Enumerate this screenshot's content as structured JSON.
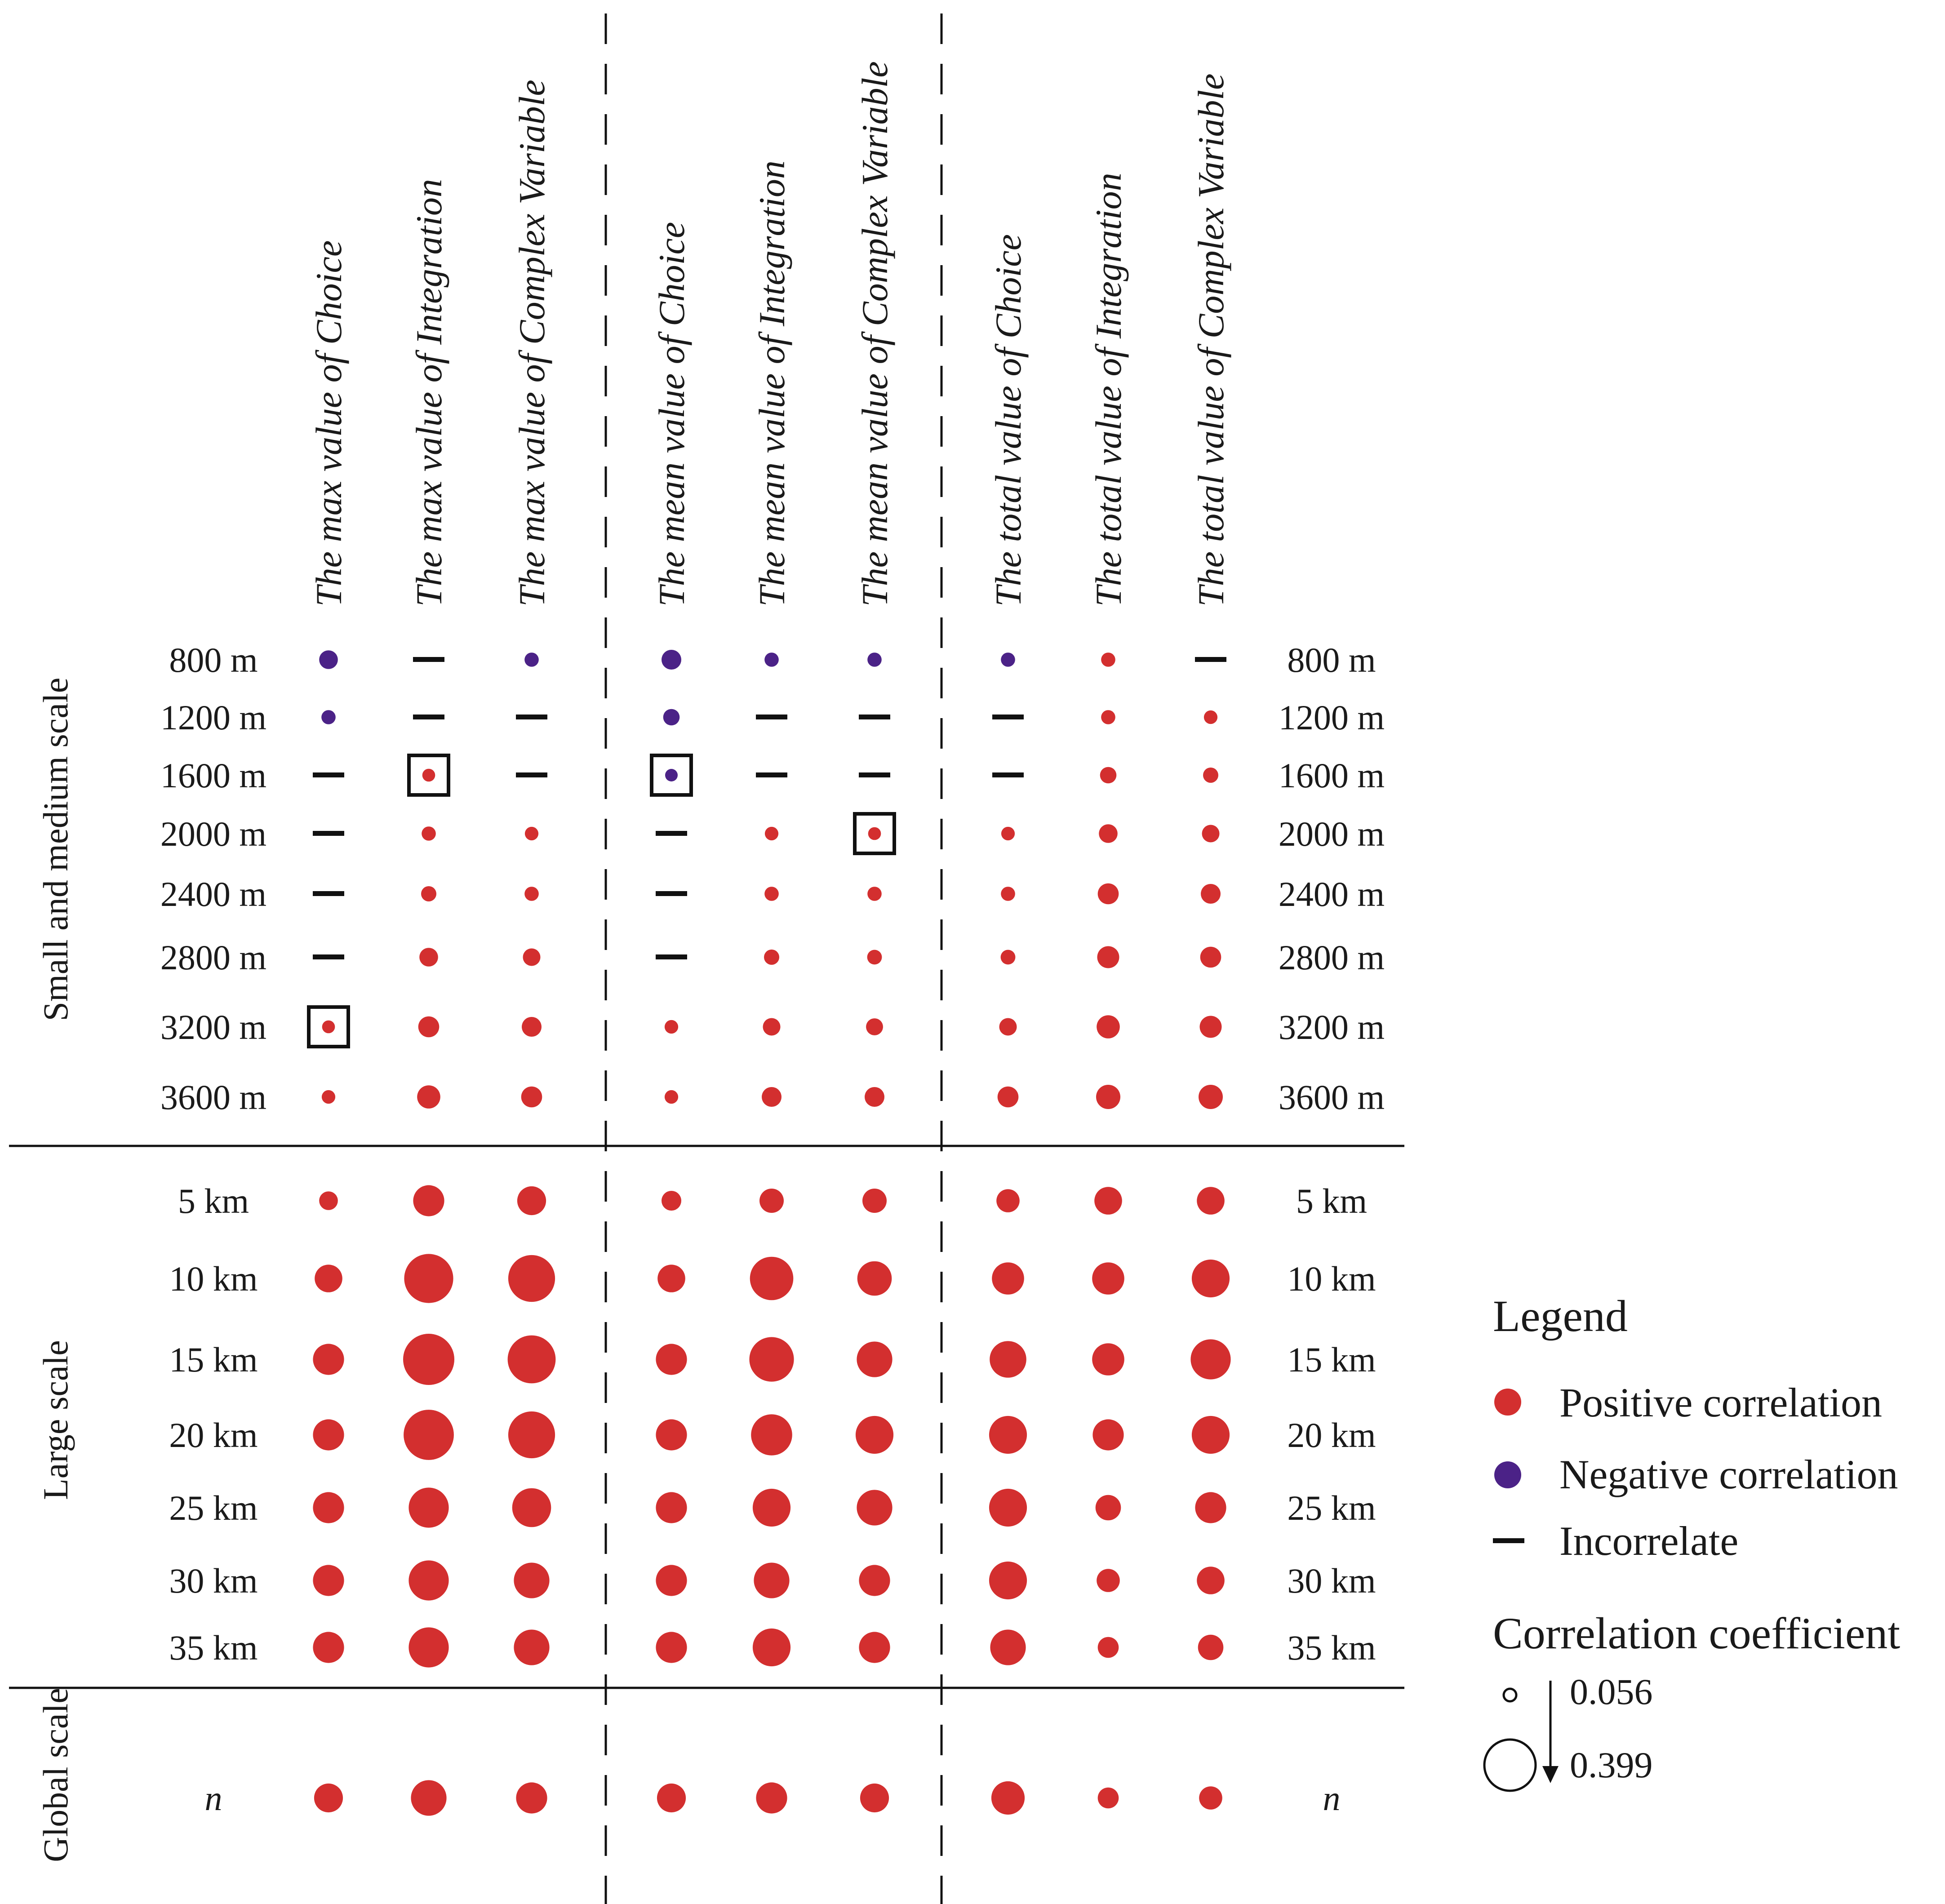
{
  "chart_data": {
    "type": "bubble-matrix",
    "title": "",
    "columns": [
      "The max value of Choice",
      "The max value of Integration",
      "The max value of Complex Variable",
      "The mean value of Choice",
      "The mean value of Integration",
      "The mean value of Complex Variable",
      "The total value of Choice",
      "The total value of Integration",
      "The total value of Complex Variable"
    ],
    "groups": [
      {
        "label": "Small and medium scale",
        "rows": [
          {
            "label": "800 m",
            "cells": [
              {
                "type": "negative",
                "value": 0.11
              },
              {
                "type": "none"
              },
              {
                "type": "negative",
                "value": 0.07
              },
              {
                "type": "negative",
                "value": 0.12
              },
              {
                "type": "negative",
                "value": 0.07
              },
              {
                "type": "negative",
                "value": 0.07
              },
              {
                "type": "negative",
                "value": 0.07
              },
              {
                "type": "positive",
                "value": 0.07
              },
              {
                "type": "none"
              }
            ]
          },
          {
            "label": "1200 m",
            "cells": [
              {
                "type": "negative",
                "value": 0.07
              },
              {
                "type": "none"
              },
              {
                "type": "none"
              },
              {
                "type": "negative",
                "value": 0.09
              },
              {
                "type": "none"
              },
              {
                "type": "none"
              },
              {
                "type": "none"
              },
              {
                "type": "positive",
                "value": 0.07
              },
              {
                "type": "positive",
                "value": 0.065
              }
            ]
          },
          {
            "label": "1600 m",
            "cells": [
              {
                "type": "none"
              },
              {
                "type": "positive",
                "value": 0.058,
                "boxed": true
              },
              {
                "type": "none"
              },
              {
                "type": "negative",
                "value": 0.056,
                "boxed": true
              },
              {
                "type": "none"
              },
              {
                "type": "none"
              },
              {
                "type": "none"
              },
              {
                "type": "positive",
                "value": 0.09
              },
              {
                "type": "positive",
                "value": 0.08
              }
            ]
          },
          {
            "label": "2000 m",
            "cells": [
              {
                "type": "none"
              },
              {
                "type": "positive",
                "value": 0.07
              },
              {
                "type": "positive",
                "value": 0.065
              },
              {
                "type": "none"
              },
              {
                "type": "positive",
                "value": 0.065
              },
              {
                "type": "positive",
                "value": 0.058,
                "boxed": true
              },
              {
                "type": "positive",
                "value": 0.065
              },
              {
                "type": "positive",
                "value": 0.11
              },
              {
                "type": "positive",
                "value": 0.1
              }
            ]
          },
          {
            "label": "2400 m",
            "cells": [
              {
                "type": "none"
              },
              {
                "type": "positive",
                "value": 0.08
              },
              {
                "type": "positive",
                "value": 0.07
              },
              {
                "type": "none"
              },
              {
                "type": "positive",
                "value": 0.07
              },
              {
                "type": "positive",
                "value": 0.07
              },
              {
                "type": "positive",
                "value": 0.07
              },
              {
                "type": "positive",
                "value": 0.13
              },
              {
                "type": "positive",
                "value": 0.12
              }
            ]
          },
          {
            "label": "2800 m",
            "cells": [
              {
                "type": "none"
              },
              {
                "type": "positive",
                "value": 0.11
              },
              {
                "type": "positive",
                "value": 0.1
              },
              {
                "type": "none"
              },
              {
                "type": "positive",
                "value": 0.08
              },
              {
                "type": "positive",
                "value": 0.075
              },
              {
                "type": "positive",
                "value": 0.075
              },
              {
                "type": "positive",
                "value": 0.14
              },
              {
                "type": "positive",
                "value": 0.13
              }
            ]
          },
          {
            "label": "3200 m",
            "cells": [
              {
                "type": "positive",
                "value": 0.058,
                "boxed": true
              },
              {
                "type": "positive",
                "value": 0.13
              },
              {
                "type": "positive",
                "value": 0.12
              },
              {
                "type": "positive",
                "value": 0.065
              },
              {
                "type": "positive",
                "value": 0.1
              },
              {
                "type": "positive",
                "value": 0.095
              },
              {
                "type": "positive",
                "value": 0.1
              },
              {
                "type": "positive",
                "value": 0.15
              },
              {
                "type": "positive",
                "value": 0.14
              }
            ]
          },
          {
            "label": "3600 m",
            "cells": [
              {
                "type": "positive",
                "value": 0.065
              },
              {
                "type": "positive",
                "value": 0.15
              },
              {
                "type": "positive",
                "value": 0.13
              },
              {
                "type": "positive",
                "value": 0.065
              },
              {
                "type": "positive",
                "value": 0.12
              },
              {
                "type": "positive",
                "value": 0.12
              },
              {
                "type": "positive",
                "value": 0.13
              },
              {
                "type": "positive",
                "value": 0.16
              },
              {
                "type": "positive",
                "value": 0.16
              }
            ]
          }
        ]
      },
      {
        "label": "Large scale",
        "rows": [
          {
            "label": "5 km",
            "cells": [
              {
                "type": "positive",
                "value": 0.11
              },
              {
                "type": "positive",
                "value": 0.22
              },
              {
                "type": "positive",
                "value": 0.2
              },
              {
                "type": "positive",
                "value": 0.12
              },
              {
                "type": "positive",
                "value": 0.16
              },
              {
                "type": "positive",
                "value": 0.16
              },
              {
                "type": "positive",
                "value": 0.15
              },
              {
                "type": "positive",
                "value": 0.19
              },
              {
                "type": "positive",
                "value": 0.19
              }
            ]
          },
          {
            "label": "10 km",
            "cells": [
              {
                "type": "positive",
                "value": 0.19
              },
              {
                "type": "positive",
                "value": 0.38
              },
              {
                "type": "positive",
                "value": 0.36
              },
              {
                "type": "positive",
                "value": 0.19
              },
              {
                "type": "positive",
                "value": 0.33
              },
              {
                "type": "positive",
                "value": 0.25
              },
              {
                "type": "positive",
                "value": 0.23
              },
              {
                "type": "positive",
                "value": 0.23
              },
              {
                "type": "positive",
                "value": 0.28
              }
            ]
          },
          {
            "label": "15 km",
            "cells": [
              {
                "type": "positive",
                "value": 0.22
              },
              {
                "type": "positive",
                "value": 0.399
              },
              {
                "type": "positive",
                "value": 0.37
              },
              {
                "type": "positive",
                "value": 0.22
              },
              {
                "type": "positive",
                "value": 0.34
              },
              {
                "type": "positive",
                "value": 0.26
              },
              {
                "type": "positive",
                "value": 0.27
              },
              {
                "type": "positive",
                "value": 0.23
              },
              {
                "type": "positive",
                "value": 0.3
              }
            ]
          },
          {
            "label": "20 km",
            "cells": [
              {
                "type": "positive",
                "value": 0.22
              },
              {
                "type": "positive",
                "value": 0.39
              },
              {
                "type": "positive",
                "value": 0.36
              },
              {
                "type": "positive",
                "value": 0.22
              },
              {
                "type": "positive",
                "value": 0.31
              },
              {
                "type": "positive",
                "value": 0.28
              },
              {
                "type": "positive",
                "value": 0.28
              },
              {
                "type": "positive",
                "value": 0.22
              },
              {
                "type": "positive",
                "value": 0.28
              }
            ]
          },
          {
            "label": "25 km",
            "cells": [
              {
                "type": "positive",
                "value": 0.22
              },
              {
                "type": "positive",
                "value": 0.3
              },
              {
                "type": "positive",
                "value": 0.29
              },
              {
                "type": "positive",
                "value": 0.22
              },
              {
                "type": "positive",
                "value": 0.28
              },
              {
                "type": "positive",
                "value": 0.26
              },
              {
                "type": "positive",
                "value": 0.28
              },
              {
                "type": "positive",
                "value": 0.17
              },
              {
                "type": "positive",
                "value": 0.22
              }
            ]
          },
          {
            "label": "30 km",
            "cells": [
              {
                "type": "positive",
                "value": 0.22
              },
              {
                "type": "positive",
                "value": 0.3
              },
              {
                "type": "positive",
                "value": 0.26
              },
              {
                "type": "positive",
                "value": 0.22
              },
              {
                "type": "positive",
                "value": 0.26
              },
              {
                "type": "positive",
                "value": 0.22
              },
              {
                "type": "positive",
                "value": 0.28
              },
              {
                "type": "positive",
                "value": 0.15
              },
              {
                "type": "positive",
                "value": 0.19
              }
            ]
          },
          {
            "label": "35 km",
            "cells": [
              {
                "type": "positive",
                "value": 0.22
              },
              {
                "type": "positive",
                "value": 0.3
              },
              {
                "type": "positive",
                "value": 0.26
              },
              {
                "type": "positive",
                "value": 0.22
              },
              {
                "type": "positive",
                "value": 0.28
              },
              {
                "type": "positive",
                "value": 0.22
              },
              {
                "type": "positive",
                "value": 0.26
              },
              {
                "type": "positive",
                "value": 0.13
              },
              {
                "type": "positive",
                "value": 0.17
              }
            ]
          }
        ]
      },
      {
        "label": "Global scale",
        "rows": [
          {
            "label": "n",
            "italic": true,
            "cells": [
              {
                "type": "positive",
                "value": 0.2
              },
              {
                "type": "positive",
                "value": 0.26
              },
              {
                "type": "positive",
                "value": 0.22
              },
              {
                "type": "positive",
                "value": 0.2
              },
              {
                "type": "positive",
                "value": 0.22
              },
              {
                "type": "positive",
                "value": 0.2
              },
              {
                "type": "positive",
                "value": 0.24
              },
              {
                "type": "positive",
                "value": 0.13
              },
              {
                "type": "positive",
                "value": 0.15
              }
            ]
          }
        ]
      }
    ],
    "legend": {
      "title": "Legend",
      "positive_label": "Positive correlation",
      "negative_label": "Negative correlation",
      "incorrelate_label": "Incorrelate",
      "size_title": "Correlation coefficient",
      "size_min": "0.056",
      "size_max": "0.399"
    },
    "size_range": [
      0.056,
      0.399
    ],
    "colors": {
      "positive": "#d32f2f",
      "negative": "#4b2287",
      "incorrelate": "#111111"
    }
  }
}
